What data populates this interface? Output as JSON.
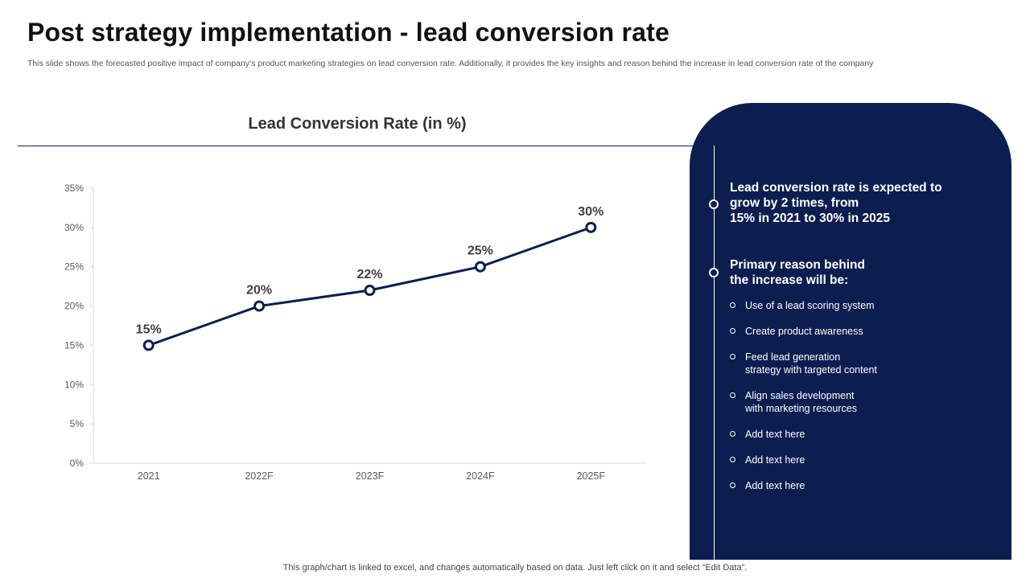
{
  "page": {
    "title": "Post strategy implementation - lead conversion rate",
    "subtitle": "This slide shows the forecasted positive impact of company’s product marketing strategies on lead conversion rate. Additionally, it provides the key insights and reason behind the increase in lead conversion rate of the company",
    "footer": "This graph/chart is linked to excel,  and changes automatically based on data. Just left click on it and select “Edit Data”."
  },
  "colors": {
    "navy": "#0c1e4f",
    "axis": "#d9d9d9",
    "tick_text": "#595959",
    "label_text": "#404040"
  },
  "chart_data": {
    "type": "line",
    "title": "Lead Conversion Rate (in %)",
    "xlabel": "",
    "ylabel": "",
    "categories": [
      "2021",
      "2022F",
      "2023F",
      "2024F",
      "2025F"
    ],
    "series": [
      {
        "values": [
          15,
          20,
          22,
          25,
          30
        ]
      }
    ],
    "data_labels": [
      "15%",
      "20%",
      "22%",
      "25%",
      "30%"
    ],
    "yticks": [
      "0%",
      "5%",
      "10%",
      "15%",
      "20%",
      "25%",
      "30%",
      "35%"
    ],
    "ylim": [
      0,
      35
    ],
    "grid": false,
    "legend": "none"
  },
  "panel": {
    "heading1": [
      "Lead conversion rate is expected to",
      "grow by 2 times, from",
      "15% in 2021 to 30% in 2025"
    ],
    "heading2": [
      "Primary reason behind",
      "the increase will be:"
    ],
    "bullets": [
      [
        "Use of a lead scoring system"
      ],
      [
        "Create product awareness"
      ],
      [
        "Feed lead generation",
        "strategy with targeted content"
      ],
      [
        "Align sales development",
        "with marketing resources"
      ],
      [
        "Add text here"
      ],
      [
        "Add text here"
      ],
      [
        "Add text here"
      ]
    ]
  }
}
